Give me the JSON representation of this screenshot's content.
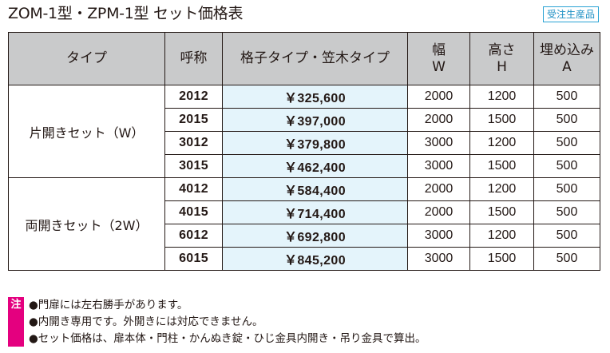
{
  "title": "ZOM-1型・ZPM-1型 セット価格表",
  "badge": "受注生産品",
  "headers": {
    "type": "タイプ",
    "code": "呼称",
    "price": "格子タイプ・笠木タイプ",
    "width": [
      "幅",
      "W"
    ],
    "height": [
      "高さ",
      "H"
    ],
    "embed": [
      "埋め込み",
      "A"
    ]
  },
  "groups": [
    {
      "type": "片開きセット（W）",
      "rows": [
        {
          "code": "2012",
          "price": "￥325,600",
          "w": "2000",
          "h": "1200",
          "a": "500"
        },
        {
          "code": "2015",
          "price": "￥397,000",
          "w": "2000",
          "h": "1500",
          "a": "500"
        },
        {
          "code": "3012",
          "price": "￥379,800",
          "w": "3000",
          "h": "1200",
          "a": "500"
        },
        {
          "code": "3015",
          "price": "￥462,400",
          "w": "3000",
          "h": "1500",
          "a": "500"
        }
      ]
    },
    {
      "type": "両開きセット（2W）",
      "rows": [
        {
          "code": "4012",
          "price": "￥584,400",
          "w": "2000",
          "h": "1200",
          "a": "500"
        },
        {
          "code": "4015",
          "price": "￥714,400",
          "w": "2000",
          "h": "1500",
          "a": "500"
        },
        {
          "code": "6012",
          "price": "￥692,800",
          "w": "3000",
          "h": "1200",
          "a": "500"
        },
        {
          "code": "6015",
          "price": "￥845,200",
          "w": "3000",
          "h": "1500",
          "a": "500"
        }
      ]
    }
  ],
  "notes": {
    "mark": "注",
    "items": [
      "●門扉には左右勝手があります。",
      "●内開き専用です。外開きには対応できません。",
      "●セット価格は、扉本体・門柱・かんぬき錠・ひじ金具内開き・吊り金具で算出。"
    ]
  }
}
